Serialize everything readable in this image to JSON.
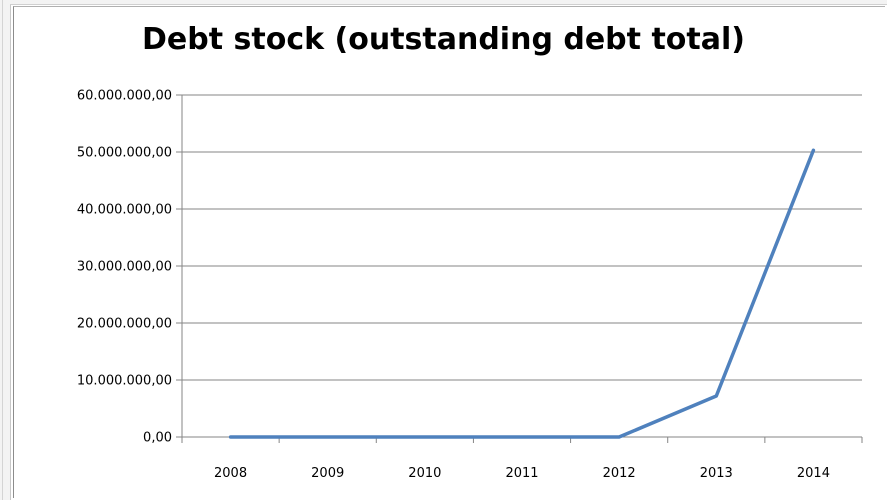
{
  "chart_data": {
    "type": "line",
    "title": "Debt stock (outstanding debt total)",
    "xlabel": "",
    "ylabel": "",
    "categories": [
      "2008",
      "2009",
      "2010",
      "2011",
      "2012",
      "2013",
      "2014"
    ],
    "series": [
      {
        "values": [
          0,
          0,
          0,
          0,
          0,
          7200000,
          50300000
        ],
        "color": "#4f81bd"
      }
    ],
    "ylim": [
      0,
      60000000
    ],
    "y_ticks": [
      0,
      10000000,
      20000000,
      30000000,
      40000000,
      50000000,
      60000000
    ],
    "y_tick_labels": [
      "0,00",
      "10.000.000,00",
      "20.000.000,00",
      "30.000.000,00",
      "40.000.000,00",
      "50.000.000,00",
      "60.000.000,00"
    ],
    "grid": true,
    "legend": "none"
  }
}
